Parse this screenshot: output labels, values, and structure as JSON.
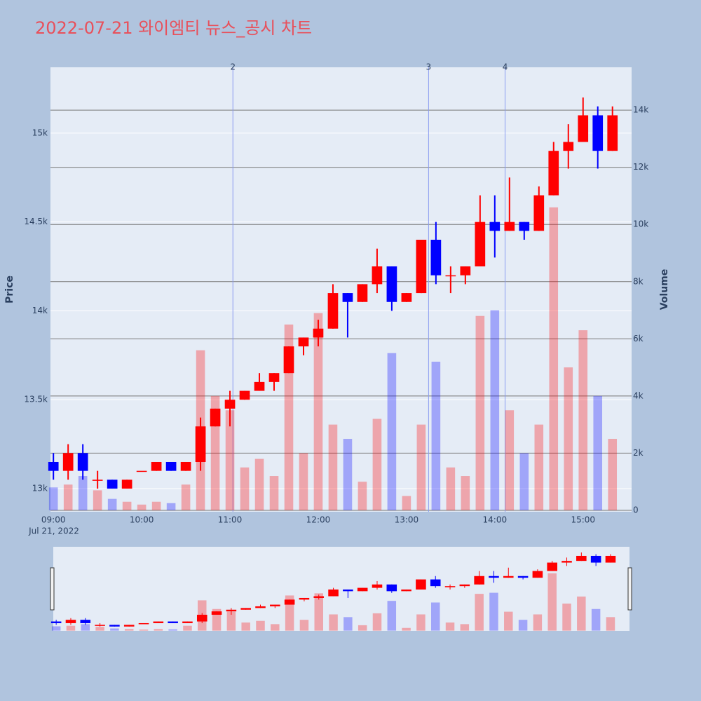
{
  "chart_data": {
    "type": "candlestick",
    "title": "2022-07-21 와이엠티 뉴스_공시 차트",
    "y_label": "Price",
    "y2_label": "Volume",
    "date_label": "Jul 21, 2022",
    "x": [
      "09:00",
      "09:10",
      "09:20",
      "09:30",
      "09:40",
      "09:50",
      "10:00",
      "10:10",
      "10:20",
      "10:30",
      "10:40",
      "10:50",
      "11:00",
      "11:10",
      "11:20",
      "11:30",
      "11:40",
      "11:50",
      "12:00",
      "12:10",
      "12:20",
      "12:30",
      "12:40",
      "12:50",
      "13:00",
      "13:10",
      "13:20",
      "13:30",
      "13:40",
      "13:50",
      "14:00",
      "14:10",
      "14:20",
      "14:30",
      "14:40",
      "14:50",
      "15:00",
      "15:10",
      "15:20"
    ],
    "open": [
      13150,
      13100,
      13200,
      13050,
      13050,
      13000,
      13100,
      13100,
      13150,
      13100,
      13150,
      13350,
      13450,
      13500,
      13550,
      13600,
      13650,
      13800,
      13850,
      13900,
      14100,
      14050,
      14150,
      14250,
      14050,
      14100,
      14400,
      14200,
      14200,
      14250,
      14500,
      14450,
      14500,
      14450,
      14650,
      14900,
      14950,
      15100,
      14900
    ],
    "high": [
      13200,
      13250,
      13250,
      13100,
      13050,
      13050,
      13100,
      13150,
      13150,
      13150,
      13400,
      13450,
      13550,
      13550,
      13650,
      13650,
      13800,
      13850,
      13950,
      14150,
      14100,
      14150,
      14350,
      14250,
      14100,
      14400,
      14500,
      14250,
      14250,
      14650,
      14650,
      14750,
      14500,
      14700,
      14950,
      15050,
      15200,
      15150,
      15150
    ],
    "low": [
      13050,
      13050,
      13050,
      13000,
      13000,
      13000,
      13100,
      13100,
      13100,
      13100,
      13100,
      13350,
      13350,
      13500,
      13550,
      13550,
      13650,
      13750,
      13800,
      13900,
      13850,
      14050,
      14100,
      14000,
      14050,
      14100,
      14150,
      14100,
      14150,
      14250,
      14300,
      14450,
      14400,
      14450,
      14650,
      14800,
      14950,
      14800,
      14900
    ],
    "close": [
      13100,
      13200,
      13100,
      13050,
      13000,
      13050,
      13100,
      13150,
      13100,
      13150,
      13350,
      13450,
      13500,
      13550,
      13600,
      13650,
      13800,
      13850,
      13900,
      14100,
      14050,
      14150,
      14250,
      14050,
      14100,
      14400,
      14200,
      14200,
      14250,
      14500,
      14450,
      14500,
      14450,
      14650,
      14900,
      14950,
      15100,
      14900,
      15100
    ],
    "volume": [
      800,
      900,
      1200,
      700,
      400,
      300,
      200,
      300,
      250,
      900,
      5600,
      4000,
      3500,
      1500,
      1800,
      1200,
      6500,
      2000,
      6900,
      3000,
      2500,
      1000,
      3200,
      5500,
      500,
      3000,
      5200,
      1500,
      1200,
      6800,
      7000,
      3500,
      2000,
      3000,
      10600,
      5000,
      6300,
      4000,
      2500
    ],
    "increasing_color": "#ff0000",
    "decreasing_color": "#0000ff",
    "xlim": [
      "08:58",
      "15:33"
    ],
    "xticks": [
      "09:00",
      "10:00",
      "11:00",
      "12:00",
      "13:00",
      "14:00",
      "15:00"
    ],
    "ylim": [
      12870,
      15370
    ],
    "yticks": [
      {
        "value": 13000,
        "label": "13k"
      },
      {
        "value": 13500,
        "label": "13.5k"
      },
      {
        "value": 14000,
        "label": "14k"
      },
      {
        "value": 14500,
        "label": "14.5k"
      },
      {
        "value": 15000,
        "label": "15k"
      }
    ],
    "y2lim": [
      -50,
      15500
    ],
    "y2ticks": [
      0,
      {
        "value": 2000,
        "label": "2k"
      },
      {
        "value": 4000,
        "label": "4k"
      },
      {
        "value": 6000,
        "label": "6k"
      },
      {
        "value": 8000,
        "label": "8k"
      },
      {
        "value": 10000,
        "label": "10k"
      },
      {
        "value": 12000,
        "label": "12k"
      },
      {
        "value": 14000,
        "label": "14k"
      }
    ],
    "markers": [
      {
        "x": "11:02",
        "label": "2"
      },
      {
        "x": "13:15",
        "label": "3"
      },
      {
        "x": "14:07",
        "label": "4"
      }
    ]
  }
}
